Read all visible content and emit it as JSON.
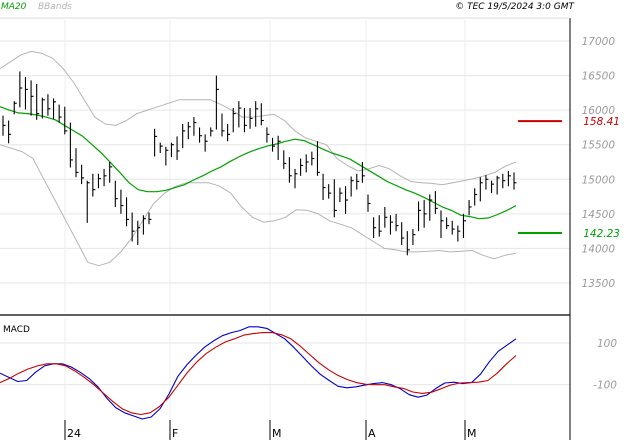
{
  "header": {
    "indicator_ma": "MA20",
    "indicator_bb": "BBands",
    "copyright": "© TEC 19/5/2024 3:0 GMT"
  },
  "chart_data": [
    {
      "type": "ohlc",
      "panel": "price",
      "ylim": [
        13000,
        17500
      ],
      "y_ticks": [
        13500,
        14000,
        14500,
        15000,
        15500,
        16000,
        16500,
        17000
      ],
      "y_tick_labels": [
        "13500",
        "14000",
        "14500",
        "15000",
        "15500",
        "16000",
        "16500",
        "17000"
      ],
      "x_tick_labels": [
        "24",
        "F",
        "M",
        "A",
        "M"
      ],
      "grid": true,
      "colors": {
        "bars": "#000000",
        "ma20": "#00a000",
        "bbands": "#b4b4b4",
        "resistance": "#c80000",
        "support": "#00a000"
      },
      "levels": [
        {
          "label": "158.41",
          "value": 15841,
          "color": "#c80000"
        },
        {
          "label": "142.23",
          "value": 14223,
          "color": "#00a000"
        }
      ],
      "bars": [
        {
          "high": 15920,
          "low": 15630,
          "close": 15780
        },
        {
          "high": 15850,
          "low": 15520,
          "close": 15650
        },
        {
          "high": 16130,
          "low": 15940,
          "close": 16100
        },
        {
          "high": 16560,
          "low": 16040,
          "close": 16320
        },
        {
          "high": 16480,
          "low": 16010,
          "close": 16300
        },
        {
          "high": 16430,
          "low": 15920,
          "close": 16200
        },
        {
          "high": 16380,
          "low": 15860,
          "close": 15950
        },
        {
          "high": 16180,
          "low": 15880,
          "close": 16150
        },
        {
          "high": 16230,
          "low": 15920,
          "close": 16020
        },
        {
          "high": 16170,
          "low": 15870,
          "close": 16120
        },
        {
          "high": 16080,
          "low": 15820,
          "close": 15900
        },
        {
          "high": 16050,
          "low": 15650,
          "close": 15700
        },
        {
          "high": 15820,
          "low": 15170,
          "close": 15280
        },
        {
          "high": 15450,
          "low": 15030,
          "close": 15100
        },
        {
          "high": 15210,
          "low": 14930,
          "close": 15020
        },
        {
          "high": 14980,
          "low": 14370,
          "close": 14950
        },
        {
          "high": 15080,
          "low": 14750,
          "close": 14850
        },
        {
          "high": 15080,
          "low": 14870,
          "close": 15010
        },
        {
          "high": 15150,
          "low": 14900,
          "close": 15050
        },
        {
          "high": 15250,
          "low": 14950,
          "close": 15180
        },
        {
          "high": 14980,
          "low": 14600,
          "close": 14720
        },
        {
          "high": 14850,
          "low": 14500,
          "close": 14620
        },
        {
          "high": 14740,
          "low": 14320,
          "close": 14420
        },
        {
          "high": 14520,
          "low": 14100,
          "close": 14250
        },
        {
          "high": 14400,
          "low": 14050,
          "close": 14300
        },
        {
          "high": 14480,
          "low": 14200,
          "close": 14430
        },
        {
          "high": 14520,
          "low": 14350,
          "close": 14420
        },
        {
          "high": 15730,
          "low": 15330,
          "close": 15620
        },
        {
          "high": 15530,
          "low": 15380,
          "close": 15480
        },
        {
          "high": 15470,
          "low": 15200,
          "close": 15420
        },
        {
          "high": 15530,
          "low": 15320,
          "close": 15500
        },
        {
          "high": 15620,
          "low": 15280,
          "close": 15410
        },
        {
          "high": 15800,
          "low": 15450,
          "close": 15700
        },
        {
          "high": 15830,
          "low": 15580,
          "close": 15760
        },
        {
          "high": 15900,
          "low": 15630,
          "close": 15820
        },
        {
          "high": 15750,
          "low": 15530,
          "close": 15630
        },
        {
          "high": 15650,
          "low": 15400,
          "close": 15550
        },
        {
          "high": 15750,
          "low": 15620,
          "close": 15700
        },
        {
          "high": 16500,
          "low": 15720,
          "close": 16300
        },
        {
          "high": 15950,
          "low": 15620,
          "close": 15700
        },
        {
          "high": 15800,
          "low": 15550,
          "close": 15650
        },
        {
          "high": 16030,
          "low": 15680,
          "close": 15950
        },
        {
          "high": 16130,
          "low": 15750,
          "close": 16030
        },
        {
          "high": 16030,
          "low": 15680,
          "close": 15780
        },
        {
          "high": 16030,
          "low": 15730,
          "close": 15880
        },
        {
          "high": 16130,
          "low": 15760,
          "close": 16020
        },
        {
          "high": 16100,
          "low": 15780,
          "close": 15850
        },
        {
          "high": 15750,
          "low": 15530,
          "close": 15650
        },
        {
          "high": 15600,
          "low": 15400,
          "close": 15480
        },
        {
          "high": 15630,
          "low": 15280,
          "close": 15550
        },
        {
          "high": 15420,
          "low": 15150,
          "close": 15230
        },
        {
          "high": 15320,
          "low": 14950,
          "close": 15050
        },
        {
          "high": 15150,
          "low": 14870,
          "close": 15080
        },
        {
          "high": 15300,
          "low": 15050,
          "close": 15200
        },
        {
          "high": 15360,
          "low": 15100,
          "close": 15250
        },
        {
          "high": 15400,
          "low": 15200,
          "close": 15300
        },
        {
          "high": 15550,
          "low": 15050,
          "close": 15100
        },
        {
          "high": 15080,
          "low": 14700,
          "close": 14880
        },
        {
          "high": 14930,
          "low": 14720,
          "close": 14800
        },
        {
          "high": 15000,
          "low": 14450,
          "close": 14550
        },
        {
          "high": 14880,
          "low": 14670,
          "close": 14800
        },
        {
          "high": 14900,
          "low": 14500,
          "close": 14700
        },
        {
          "high": 15040,
          "low": 14750,
          "close": 14980
        },
        {
          "high": 15080,
          "low": 14850,
          "close": 14970
        },
        {
          "high": 15250,
          "low": 14950,
          "close": 15050
        },
        {
          "high": 14780,
          "low": 14530,
          "close": 14650
        },
        {
          "high": 14450,
          "low": 14150,
          "close": 14300
        },
        {
          "high": 14480,
          "low": 14170,
          "close": 14250
        },
        {
          "high": 14600,
          "low": 14300,
          "close": 14450
        },
        {
          "high": 14480,
          "low": 14200,
          "close": 14380
        },
        {
          "high": 14500,
          "low": 14250,
          "close": 14330
        },
        {
          "high": 14380,
          "low": 14050,
          "close": 14150
        },
        {
          "high": 14250,
          "low": 13900,
          "close": 13980
        },
        {
          "high": 14280,
          "low": 14050,
          "close": 14200
        },
        {
          "high": 14680,
          "low": 14250,
          "close": 14550
        },
        {
          "high": 14700,
          "low": 14300,
          "close": 14500
        },
        {
          "high": 14780,
          "low": 14400,
          "close": 14700
        },
        {
          "high": 14830,
          "low": 14500,
          "close": 14580
        },
        {
          "high": 14550,
          "low": 14150,
          "close": 14400
        },
        {
          "high": 14450,
          "low": 14280,
          "close": 14330
        },
        {
          "high": 14400,
          "low": 14200,
          "close": 14280
        },
        {
          "high": 14330,
          "low": 14100,
          "close": 14250
        },
        {
          "high": 14500,
          "low": 14150,
          "close": 14400
        },
        {
          "high": 14700,
          "low": 14480,
          "close": 14600
        },
        {
          "high": 14870,
          "low": 14620,
          "close": 14780
        },
        {
          "high": 15030,
          "low": 14680,
          "close": 14950
        },
        {
          "high": 15060,
          "low": 14850,
          "close": 15000
        },
        {
          "high": 14980,
          "low": 14800,
          "close": 14930
        },
        {
          "high": 15050,
          "low": 14780,
          "close": 15020
        },
        {
          "high": 15080,
          "low": 14870,
          "close": 14980
        },
        {
          "high": 15120,
          "low": 14900,
          "close": 15050
        },
        {
          "high": 15100,
          "low": 14850,
          "close": 14950
        }
      ],
      "ma20": [
        16050,
        16000,
        15960,
        15950,
        15930,
        15900,
        15860,
        15780,
        15700,
        15620,
        15500,
        15380,
        15240,
        15100,
        14950,
        14850,
        14820,
        14820,
        14840,
        14880,
        14920,
        14990,
        15050,
        15120,
        15180,
        15260,
        15330,
        15390,
        15440,
        15480,
        15510,
        15550,
        15580,
        15560,
        15500,
        15440,
        15380,
        15340,
        15290,
        15210,
        15130,
        15050,
        14970,
        14910,
        14850,
        14800,
        14740,
        14670,
        14600,
        14550,
        14480,
        14460,
        14430,
        14440,
        14490,
        14550,
        14620
      ],
      "bb_upper": [
        16600,
        16700,
        16800,
        16850,
        16820,
        16750,
        16600,
        16400,
        16150,
        15900,
        15800,
        15780,
        15850,
        15950,
        16000,
        16050,
        16100,
        16150,
        16150,
        16150,
        16150,
        16080,
        16000,
        15900,
        15900,
        15920,
        15940,
        15850,
        15700,
        15600,
        15550,
        15500,
        15300,
        15200,
        15120,
        15150,
        15200,
        15150,
        15050,
        14970,
        14950,
        14940,
        14920,
        14950,
        14980,
        15010,
        15050,
        15100,
        15190,
        15250
      ],
      "bb_lower": [
        15500,
        15450,
        15400,
        15300,
        15000,
        14700,
        14400,
        14100,
        13800,
        13750,
        13800,
        13950,
        14150,
        14400,
        14650,
        14800,
        14900,
        14950,
        14950,
        14950,
        14900,
        14800,
        14600,
        14450,
        14380,
        14400,
        14450,
        14560,
        14550,
        14500,
        14400,
        14350,
        14300,
        14200,
        14100,
        14000,
        13980,
        13950,
        13950,
        13960,
        13970,
        13950,
        13960,
        13970,
        13900,
        13850,
        13900,
        13930
      ]
    },
    {
      "type": "line",
      "panel": "MACD",
      "title": "MACD",
      "ylim": [
        -260,
        220
      ],
      "y_ticks": [
        100,
        -100
      ],
      "y_tick_labels": [
        "100",
        "-100"
      ],
      "x_tick_labels": [
        "24",
        "F",
        "M",
        "A",
        "M"
      ],
      "grid": true,
      "series": [
        {
          "name": "MACD",
          "color": "#0000c8",
          "values": [
            -45,
            -65,
            -85,
            -80,
            -40,
            -10,
            0,
            0,
            -15,
            -40,
            -70,
            -110,
            -165,
            -210,
            -235,
            -250,
            -265,
            -255,
            -215,
            -145,
            -60,
            -5,
            40,
            80,
            110,
            135,
            150,
            160,
            178,
            178,
            170,
            145,
            120,
            80,
            35,
            -10,
            -50,
            -80,
            -108,
            -115,
            -110,
            -102,
            -95,
            -90,
            -100,
            -120,
            -148,
            -160,
            -150,
            -118,
            -92,
            -88,
            -95,
            -90,
            -50,
            10,
            60,
            90,
            120
          ]
        },
        {
          "name": "Signal",
          "color": "#c80000",
          "values": [
            -90,
            -70,
            -45,
            -25,
            -10,
            0,
            0,
            -10,
            -35,
            -65,
            -100,
            -140,
            -180,
            -215,
            -235,
            -243,
            -235,
            -205,
            -160,
            -100,
            -40,
            10,
            50,
            80,
            105,
            120,
            138,
            145,
            150,
            150,
            140,
            120,
            85,
            45,
            5,
            -28,
            -55,
            -75,
            -90,
            -98,
            -100,
            -100,
            -110,
            -118,
            -135,
            -142,
            -136,
            -120,
            -102,
            -92,
            -90,
            -88,
            -80,
            -45,
            0,
            40
          ]
        }
      ]
    }
  ]
}
